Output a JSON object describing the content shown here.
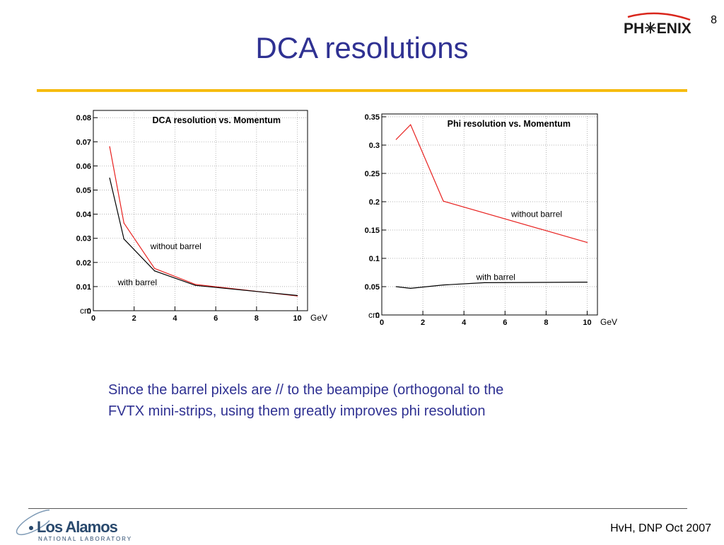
{
  "slide": {
    "title": "DCA resolutions",
    "number": "8",
    "caption_line1": "Since the barrel pixels are // to the beampipe (orthogonal to the",
    "caption_line2": "FVTX mini-strips, using them greatly improves phi resolution",
    "footer": "HvH, DNP Oct 2007"
  },
  "logos": {
    "phenix": "PH✳ENIX",
    "lanl_main": "Los Alamos",
    "lanl_sub": "NATIONAL LABORATORY"
  },
  "colors": {
    "title": "#2f3192",
    "rule": "#f3b400",
    "without_barrel": "#e8201e",
    "with_barrel": "#000000"
  },
  "chart_data": [
    {
      "type": "line",
      "title": "DCA resolution vs. Momentum",
      "xunit": "GeV",
      "yunit": "cm",
      "xlim": [
        0,
        10.5
      ],
      "ylim": [
        0,
        0.083
      ],
      "xticks": [
        0,
        2,
        4,
        6,
        8,
        10
      ],
      "yticks": [
        0,
        0.01,
        0.02,
        0.03,
        0.04,
        0.05,
        0.06,
        0.07,
        0.08
      ],
      "xticklabels": [
        "0",
        "2",
        "4",
        "6",
        "8",
        "10"
      ],
      "yticklabels": [
        "0",
        "0.01",
        "0.02",
        "0.03",
        "0.04",
        "0.05",
        "0.06",
        "0.07",
        "0.08"
      ],
      "grid": true,
      "series": [
        {
          "name": "without barrel",
          "color": "#e8201e",
          "x": [
            0.8,
            1.5,
            3,
            5,
            10
          ],
          "y": [
            0.068,
            0.0363,
            0.0175,
            0.0109,
            0.0061
          ]
        },
        {
          "name": "with barrel",
          "color": "#000000",
          "x": [
            0.8,
            1.5,
            3,
            5,
            10
          ],
          "y": [
            0.055,
            0.0297,
            0.0165,
            0.0105,
            0.0063
          ]
        }
      ],
      "annotations": [
        {
          "text": "without barrel",
          "x": 2.8,
          "y": 0.0255
        },
        {
          "text": "with barrel",
          "x": 1.2,
          "y": 0.0105
        }
      ]
    },
    {
      "type": "line",
      "title": "Phi resolution vs. Momentum",
      "xunit": "GeV",
      "yunit": "cm",
      "xlim": [
        0,
        10.5
      ],
      "ylim": [
        0,
        0.355
      ],
      "xticks": [
        0,
        2,
        4,
        6,
        8,
        10
      ],
      "yticks": [
        0,
        0.05,
        0.1,
        0.15,
        0.2,
        0.25,
        0.3,
        0.35
      ],
      "xticklabels": [
        "0",
        "2",
        "4",
        "6",
        "8",
        "10"
      ],
      "yticklabels": [
        "0",
        "0.05",
        "0.1",
        "0.15",
        "0.2",
        "0.25",
        "0.3",
        "0.35"
      ],
      "grid": true,
      "series": [
        {
          "name": "without barrel",
          "color": "#e8201e",
          "x": [
            0.7,
            1.4,
            3,
            10
          ],
          "y": [
            0.31,
            0.336,
            0.201,
            0.128
          ]
        },
        {
          "name": "with barrel",
          "color": "#000000",
          "x": [
            0.7,
            1.4,
            3,
            5,
            10
          ],
          "y": [
            0.05,
            0.047,
            0.053,
            0.057,
            0.058
          ]
        }
      ],
      "annotations": [
        {
          "text": "without barrel",
          "x": 6.3,
          "y": 0.173
        },
        {
          "text": "with barrel",
          "x": 4.6,
          "y": 0.062
        }
      ]
    }
  ]
}
